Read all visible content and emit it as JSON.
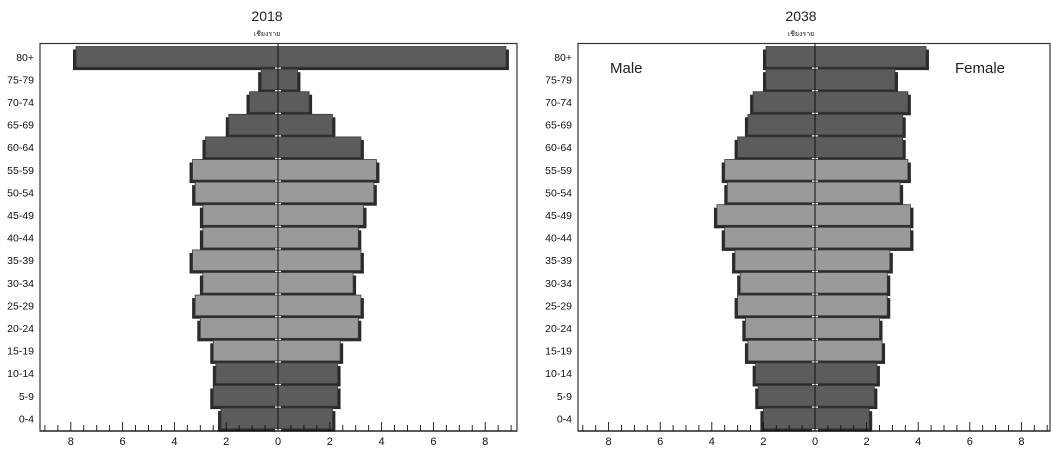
{
  "chart_data": [
    {
      "type": "bar",
      "title": "2018",
      "subtitle": "เชียงราย",
      "side_labels": {
        "left": "",
        "right": ""
      },
      "categories": [
        "80+",
        "75-79",
        "70-74",
        "65-69",
        "60-64",
        "55-59",
        "50-54",
        "45-49",
        "40-44",
        "35-39",
        "30-34",
        "25-29",
        "20-24",
        "15-19",
        "10-14",
        "5-9",
        "0-4"
      ],
      "series": [
        {
          "name": "",
          "values": [
            7.8,
            0.65,
            1.1,
            1.9,
            2.8,
            3.3,
            3.2,
            2.9,
            2.9,
            3.3,
            2.9,
            3.2,
            3.0,
            2.5,
            2.4,
            2.5,
            2.2
          ]
        },
        {
          "name": "",
          "values": [
            8.8,
            0.75,
            1.2,
            2.1,
            3.2,
            3.8,
            3.7,
            3.3,
            3.1,
            3.2,
            2.9,
            3.2,
            3.1,
            2.4,
            2.3,
            2.3,
            2.1
          ]
        }
      ],
      "highlight_categories": [
        "55-59",
        "50-54",
        "45-49",
        "40-44",
        "35-39",
        "30-34",
        "25-29",
        "20-24",
        "15-19"
      ],
      "x_tick_labels": [
        "8",
        "6",
        "4",
        "2",
        "0",
        "2",
        "4",
        "6",
        "8"
      ],
      "xlim": [
        -9,
        9
      ],
      "grid": false,
      "colors": {
        "dark": "#5c5c5c",
        "light": "#9a9a9a",
        "shadow": "#2a2a2a",
        "frame": "#333333"
      }
    },
    {
      "type": "bar",
      "title": "2038",
      "subtitle": "เชียงราย",
      "side_labels": {
        "left": "Male",
        "right": "Female"
      },
      "categories": [
        "80+",
        "75-79",
        "70-74",
        "65-69",
        "60-64",
        "55-59",
        "50-54",
        "45-49",
        "40-44",
        "35-39",
        "30-34",
        "25-29",
        "20-24",
        "15-19",
        "10-14",
        "5-9",
        "0-4"
      ],
      "series": [
        {
          "name": "Male",
          "values": [
            1.9,
            1.9,
            2.4,
            2.6,
            3.0,
            3.5,
            3.4,
            3.8,
            3.5,
            3.1,
            2.9,
            3.0,
            2.7,
            2.6,
            2.3,
            2.2,
            2.0
          ]
        },
        {
          "name": "Female",
          "values": [
            4.3,
            3.1,
            3.6,
            3.4,
            3.4,
            3.6,
            3.3,
            3.7,
            3.7,
            2.9,
            2.8,
            2.8,
            2.5,
            2.6,
            2.4,
            2.3,
            2.1
          ]
        }
      ],
      "highlight_categories": [
        "55-59",
        "50-54",
        "45-49",
        "40-44",
        "35-39",
        "30-34",
        "25-29",
        "20-24",
        "15-19"
      ],
      "x_tick_labels": [
        "8",
        "6",
        "4",
        "2",
        "0",
        "2",
        "4",
        "6",
        "8"
      ],
      "xlim": [
        -9,
        9
      ],
      "grid": false,
      "colors": {
        "dark": "#5c5c5c",
        "light": "#9a9a9a",
        "shadow": "#2a2a2a",
        "frame": "#333333"
      }
    }
  ]
}
